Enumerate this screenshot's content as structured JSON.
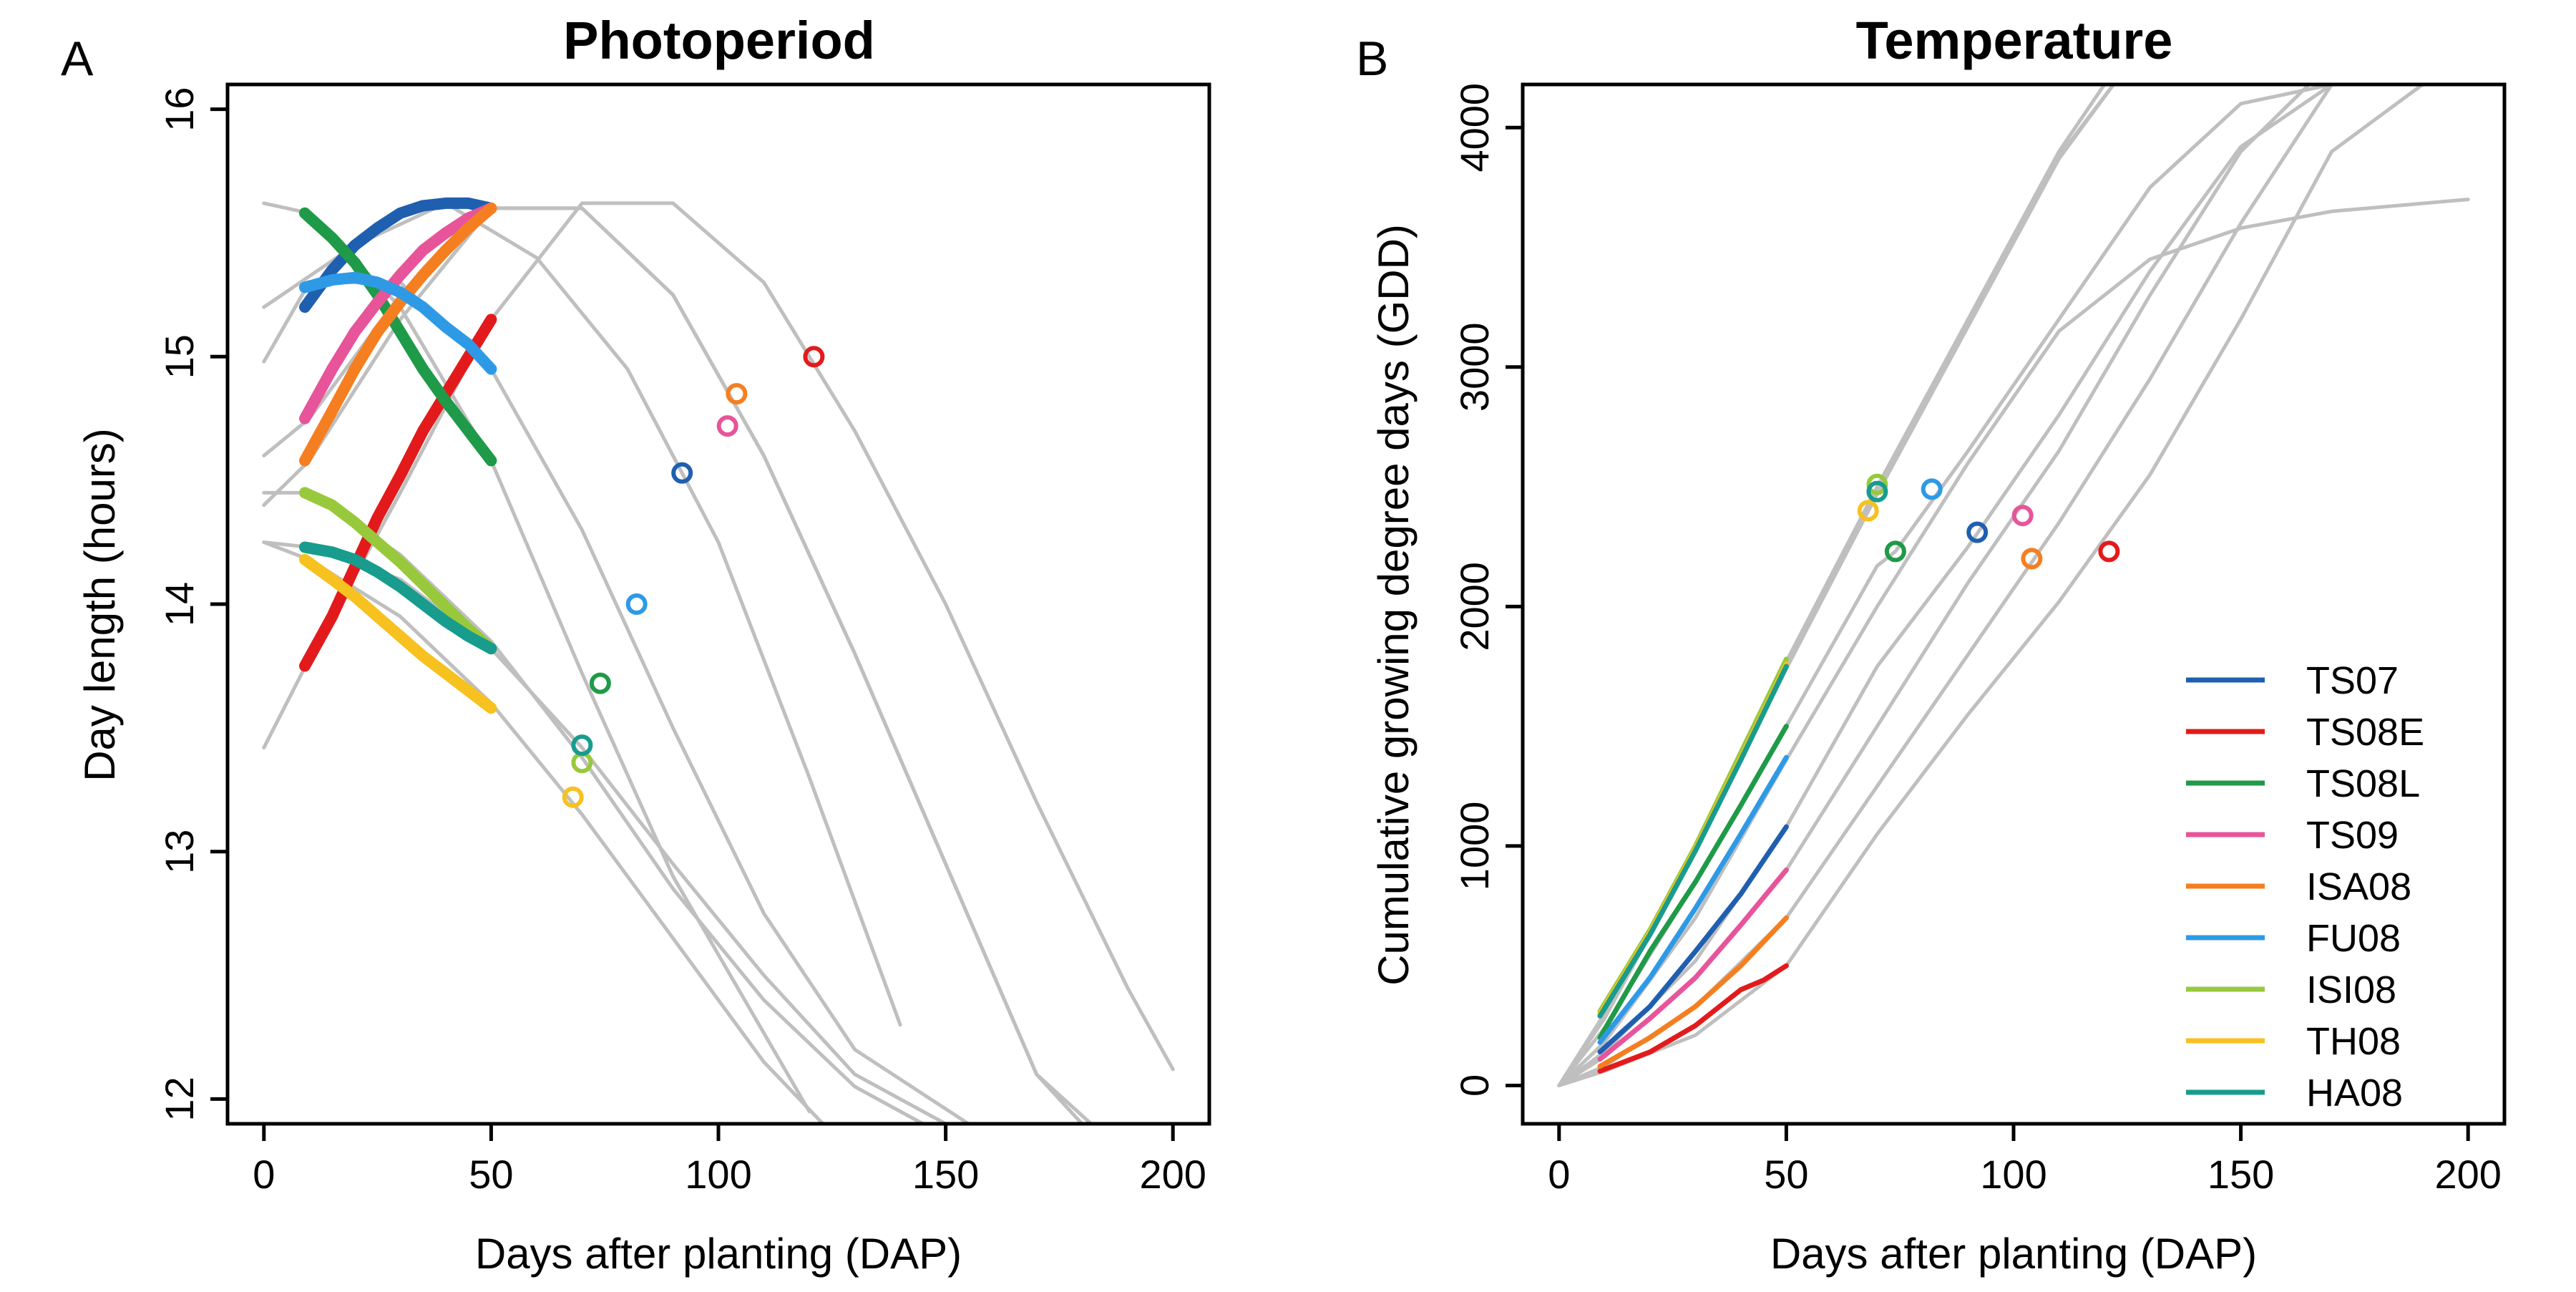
{
  "panels": [
    {
      "letter": "A",
      "title": "Photoperiod",
      "xlabel": "Days after planting (DAP)",
      "ylabel": "Day length (hours)"
    },
    {
      "letter": "B",
      "title": "Temperature",
      "xlabel": "Days after planting (DAP)",
      "ylabel": "Cumulative growing degree days (GDD)"
    }
  ],
  "colors": {
    "TS07": "#1f5fb0",
    "TS08E": "#e31a1c",
    "TS08L": "#1f9a48",
    "TS09": "#e7549a",
    "ISA08": "#f57f20",
    "FU08": "#2e9ae6",
    "ISI08": "#98c93c",
    "TH08": "#f7c120",
    "HA08": "#179c8e",
    "background_curve": "#bfbfbf"
  },
  "chart_data": [
    {
      "type": "line",
      "title": "Photoperiod",
      "xlabel": "Days after planting (DAP)",
      "ylabel": "Day length (hours)",
      "xlim": [
        -8,
        208
      ],
      "ylim": [
        11.9,
        16.1
      ],
      "xticks": [
        0,
        50,
        100,
        150,
        200
      ],
      "yticks": [
        12,
        13,
        14,
        15,
        16
      ],
      "grid": false,
      "background_curves": [
        {
          "name": "TS07",
          "x": [
            0,
            20,
            40,
            60,
            80,
            100,
            120,
            140
          ],
          "y": [
            15.2,
            15.45,
            15.62,
            15.4,
            14.95,
            14.25,
            13.3,
            12.3
          ]
        },
        {
          "name": "TS08E",
          "x": [
            0,
            10,
            30,
            50,
            70,
            90,
            110,
            130,
            150,
            170,
            190,
            200
          ],
          "y": [
            13.42,
            13.78,
            14.45,
            15.15,
            15.62,
            15.62,
            15.3,
            14.7,
            14.0,
            13.2,
            12.45,
            12.12
          ]
        },
        {
          "name": "TS08L",
          "x": [
            0,
            10,
            30,
            50,
            70,
            90,
            120
          ],
          "y": [
            15.62,
            15.58,
            15.2,
            14.58,
            13.72,
            12.9,
            11.95
          ]
        },
        {
          "name": "TS09",
          "x": [
            0,
            10,
            30,
            50,
            70,
            90,
            110,
            130,
            150,
            170,
            180
          ],
          "y": [
            14.6,
            14.75,
            15.25,
            15.6,
            15.6,
            15.25,
            14.6,
            13.8,
            12.95,
            12.1,
            11.9
          ]
        },
        {
          "name": "ISA08",
          "x": [
            0,
            10,
            30,
            50,
            70,
            90,
            110,
            130,
            150,
            170,
            185
          ],
          "y": [
            14.4,
            14.58,
            15.15,
            15.6,
            15.6,
            15.25,
            14.6,
            13.8,
            12.95,
            12.1,
            11.85
          ]
        },
        {
          "name": "FU08",
          "x": [
            0,
            10,
            30,
            50,
            70,
            90,
            110,
            130,
            155
          ],
          "y": [
            14.98,
            15.3,
            15.3,
            14.95,
            14.3,
            13.5,
            12.75,
            12.2,
            11.9
          ]
        },
        {
          "name": "ISI08",
          "x": [
            0,
            10,
            30,
            50,
            70,
            90,
            110,
            130,
            145
          ],
          "y": [
            14.45,
            14.45,
            14.2,
            13.85,
            13.38,
            12.85,
            12.4,
            12.05,
            11.9
          ]
        },
        {
          "name": "TH08",
          "x": [
            0,
            10,
            30,
            50,
            70,
            90,
            110,
            123
          ],
          "y": [
            14.25,
            14.18,
            13.95,
            13.6,
            13.15,
            12.65,
            12.15,
            11.9
          ]
        },
        {
          "name": "HA08",
          "x": [
            0,
            10,
            30,
            50,
            70,
            90,
            110,
            130,
            150
          ],
          "y": [
            14.25,
            14.23,
            14.1,
            13.82,
            13.42,
            12.95,
            12.5,
            12.1,
            11.9
          ]
        }
      ],
      "series": [
        {
          "name": "TS07",
          "x": [
            9,
            15,
            20,
            25,
            30,
            35,
            40,
            45,
            50
          ],
          "y": [
            15.2,
            15.35,
            15.45,
            15.52,
            15.58,
            15.61,
            15.62,
            15.62,
            15.6
          ]
        },
        {
          "name": "TS08E",
          "x": [
            9,
            15,
            20,
            25,
            30,
            35,
            40,
            45,
            50
          ],
          "y": [
            13.75,
            13.95,
            14.15,
            14.35,
            14.52,
            14.7,
            14.85,
            15.0,
            15.15
          ]
        },
        {
          "name": "TS08L",
          "x": [
            9,
            15,
            20,
            25,
            30,
            35,
            40,
            45,
            50
          ],
          "y": [
            15.58,
            15.48,
            15.38,
            15.25,
            15.1,
            14.95,
            14.82,
            14.7,
            14.58
          ]
        },
        {
          "name": "TS09",
          "x": [
            9,
            15,
            20,
            25,
            30,
            35,
            40,
            45,
            50
          ],
          "y": [
            14.75,
            14.95,
            15.1,
            15.22,
            15.33,
            15.43,
            15.5,
            15.56,
            15.6
          ]
        },
        {
          "name": "ISA08",
          "x": [
            9,
            15,
            20,
            25,
            30,
            35,
            40,
            45,
            50
          ],
          "y": [
            14.58,
            14.78,
            14.95,
            15.1,
            15.22,
            15.33,
            15.43,
            15.52,
            15.6
          ]
        },
        {
          "name": "FU08",
          "x": [
            9,
            15,
            20,
            25,
            30,
            35,
            40,
            45,
            50
          ],
          "y": [
            15.28,
            15.31,
            15.32,
            15.3,
            15.26,
            15.2,
            15.12,
            15.05,
            14.95
          ]
        },
        {
          "name": "ISI08",
          "x": [
            9,
            15,
            20,
            25,
            30,
            35,
            40,
            45,
            50
          ],
          "y": [
            14.45,
            14.4,
            14.33,
            14.25,
            14.17,
            14.08,
            13.99,
            13.9,
            13.82
          ]
        },
        {
          "name": "TH08",
          "x": [
            9,
            15,
            20,
            25,
            30,
            35,
            40,
            45,
            50
          ],
          "y": [
            14.18,
            14.1,
            14.03,
            13.95,
            13.87,
            13.79,
            13.72,
            13.65,
            13.58
          ]
        },
        {
          "name": "HA08",
          "x": [
            9,
            15,
            20,
            25,
            30,
            35,
            40,
            45,
            50
          ],
          "y": [
            14.23,
            14.21,
            14.18,
            14.13,
            14.07,
            14.0,
            13.93,
            13.87,
            13.82
          ]
        }
      ],
      "markers": [
        {
          "name": "TS07",
          "x": 92,
          "y": 14.53
        },
        {
          "name": "TS08E",
          "x": 121,
          "y": 15.0
        },
        {
          "name": "TS08L",
          "x": 74,
          "y": 13.68
        },
        {
          "name": "TS09",
          "x": 102,
          "y": 14.72
        },
        {
          "name": "ISA08",
          "x": 104,
          "y": 14.85
        },
        {
          "name": "FU08",
          "x": 82,
          "y": 14.0
        },
        {
          "name": "ISI08",
          "x": 70,
          "y": 13.36
        },
        {
          "name": "TH08",
          "x": 68,
          "y": 13.22
        },
        {
          "name": "HA08",
          "x": 70,
          "y": 13.43
        }
      ]
    },
    {
      "type": "line",
      "title": "Temperature",
      "xlabel": "Days after planting (DAP)",
      "ylabel": "Cumulative growing degree days (GDD)",
      "xlim": [
        -8,
        208
      ],
      "ylim": [
        -160,
        4180
      ],
      "xticks": [
        0,
        50,
        100,
        150,
        200
      ],
      "yticks": [
        0,
        1000,
        2000,
        3000,
        4000
      ],
      "grid": false,
      "legend_position": "bottom-right",
      "background_curves": [
        {
          "name": "TS07",
          "x": [
            0,
            10,
            30,
            50,
            70,
            90,
            110,
            130,
            150,
            170
          ],
          "y": [
            0,
            140,
            520,
            1080,
            1750,
            2250,
            2800,
            3400,
            3920,
            4180
          ]
        },
        {
          "name": "TS08E",
          "x": [
            0,
            10,
            30,
            50,
            70,
            90,
            110,
            130,
            150,
            170,
            190
          ],
          "y": [
            0,
            60,
            210,
            500,
            1050,
            1550,
            2020,
            2550,
            3200,
            3900,
            4180
          ]
        },
        {
          "name": "TS08L",
          "x": [
            0,
            10,
            30,
            50,
            70,
            74,
            90,
            110,
            130,
            150,
            170,
            180
          ],
          "y": [
            0,
            240,
            850,
            1500,
            2170,
            2230,
            2650,
            3200,
            3750,
            4100,
            4180,
            4180
          ]
        },
        {
          "name": "TS09",
          "x": [
            0,
            10,
            30,
            50,
            70,
            90,
            110,
            130,
            150,
            165
          ],
          "y": [
            0,
            120,
            450,
            900,
            1500,
            2100,
            2650,
            3300,
            3900,
            4180
          ]
        },
        {
          "name": "ISA08",
          "x": [
            0,
            10,
            30,
            50,
            70,
            90,
            110,
            130,
            150,
            170
          ],
          "y": [
            0,
            80,
            330,
            700,
            1250,
            1800,
            2350,
            2950,
            3600,
            4180
          ]
        },
        {
          "name": "FU08",
          "x": [
            0,
            10,
            30,
            50,
            70,
            90,
            110,
            130,
            150,
            170,
            200
          ],
          "y": [
            0,
            180,
            700,
            1360,
            2000,
            2600,
            3150,
            3450,
            3580,
            3650,
            3700
          ]
        },
        {
          "name": "ISI08",
          "x": [
            0,
            10,
            30,
            50,
            70,
            90,
            110,
            120
          ],
          "y": [
            0,
            300,
            1000,
            1770,
            2500,
            3200,
            3900,
            4180
          ]
        },
        {
          "name": "TH08",
          "x": [
            0,
            10,
            30,
            50,
            70,
            90,
            110,
            122
          ],
          "y": [
            0,
            290,
            990,
            1750,
            2480,
            3180,
            3880,
            4180
          ]
        },
        {
          "name": "HA08",
          "x": [
            0,
            10,
            30,
            50,
            70,
            90,
            110,
            122
          ],
          "y": [
            0,
            280,
            980,
            1740,
            2470,
            3170,
            3870,
            4180
          ]
        }
      ],
      "series": [
        {
          "name": "TS07",
          "x": [
            9,
            20,
            30,
            40,
            50
          ],
          "y": [
            140,
            330,
            560,
            800,
            1080
          ]
        },
        {
          "name": "TS08E",
          "x": [
            9,
            20,
            30,
            40,
            45,
            50
          ],
          "y": [
            60,
            140,
            250,
            400,
            440,
            500
          ]
        },
        {
          "name": "TS08L",
          "x": [
            9,
            20,
            30,
            40,
            50
          ],
          "y": [
            200,
            560,
            850,
            1170,
            1500
          ]
        },
        {
          "name": "TS09",
          "x": [
            9,
            20,
            30,
            40,
            50
          ],
          "y": [
            110,
            280,
            450,
            670,
            900
          ]
        },
        {
          "name": "ISA08",
          "x": [
            9,
            20,
            30,
            40,
            50
          ],
          "y": [
            80,
            200,
            330,
            500,
            700
          ]
        },
        {
          "name": "FU08",
          "x": [
            9,
            20,
            30,
            40,
            50
          ],
          "y": [
            180,
            450,
            740,
            1050,
            1370
          ]
        },
        {
          "name": "ISI08",
          "x": [
            9,
            20,
            30,
            40,
            50
          ],
          "y": [
            310,
            650,
            1000,
            1390,
            1780
          ]
        },
        {
          "name": "TH08",
          "x": [
            9,
            20,
            30,
            40,
            50
          ],
          "y": [
            300,
            640,
            990,
            1370,
            1760
          ]
        },
        {
          "name": "HA08",
          "x": [
            9,
            20,
            30,
            40,
            50
          ],
          "y": [
            290,
            630,
            980,
            1360,
            1750
          ]
        }
      ],
      "markers": [
        {
          "name": "TS07",
          "x": 92,
          "y": 2310
        },
        {
          "name": "TS08E",
          "x": 121,
          "y": 2230
        },
        {
          "name": "TS08L",
          "x": 74,
          "y": 2230
        },
        {
          "name": "TS09",
          "x": 102,
          "y": 2380
        },
        {
          "name": "ISA08",
          "x": 104,
          "y": 2200
        },
        {
          "name": "FU08",
          "x": 82,
          "y": 2490
        },
        {
          "name": "ISI08",
          "x": 70,
          "y": 2510
        },
        {
          "name": "TH08",
          "x": 68,
          "y": 2400
        },
        {
          "name": "HA08",
          "x": 70,
          "y": 2480
        }
      ],
      "legend": [
        "TS07",
        "TS08E",
        "TS08L",
        "TS09",
        "ISA08",
        "FU08",
        "ISI08",
        "TH08",
        "HA08"
      ]
    }
  ]
}
